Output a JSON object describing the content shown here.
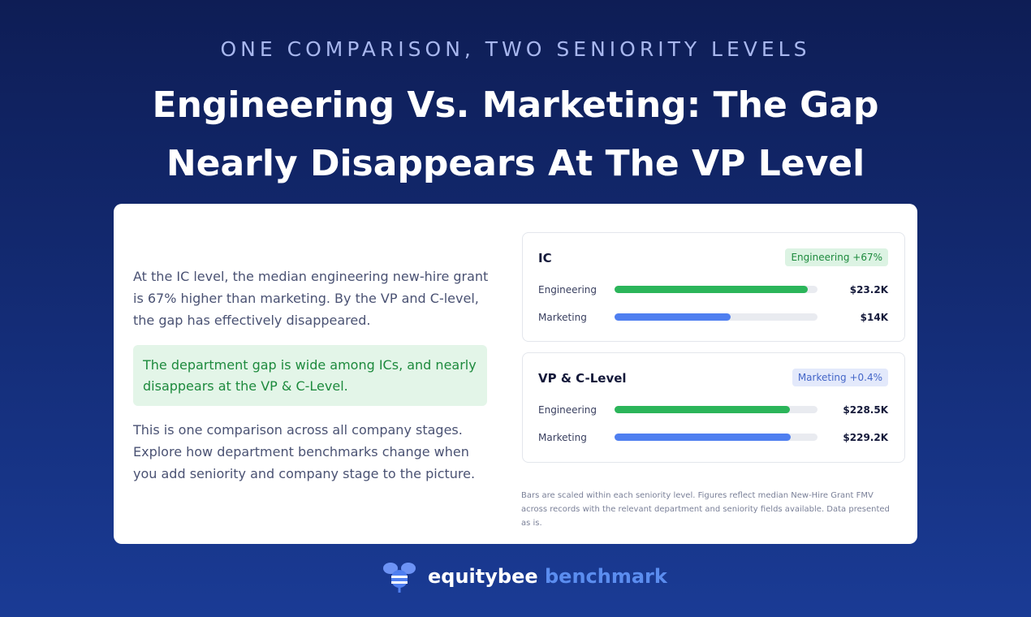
{
  "header": {
    "eyebrow": "ONE COMPARISON, TWO SENIORITY LEVELS",
    "title": "Engineering Vs. Marketing: The Gap Nearly Disappears At The VP Level"
  },
  "body": {
    "intro": "At the IC level, the median engineering new-hire grant is 67% higher than marketing. By the VP and C-level, the gap has effectively disappeared.",
    "callout": "The department gap is wide among ICs, and nearly disappears at the VP & C-Level.",
    "outro": "This is one comparison across all company stages. Explore how department benchmarks change when you add seniority and company stage to the picture."
  },
  "panels": [
    {
      "title": "IC",
      "badge": "Engineering +67%",
      "badge_style": "green",
      "xlim": [
        0,
        24400
      ],
      "rows": [
        {
          "name": "Engineering",
          "value": 23200,
          "value_label": "$23.2K",
          "color": "#2bb55a"
        },
        {
          "name": "Marketing",
          "value": 14000,
          "value_label": "$14K",
          "color": "#4f7ff0"
        }
      ]
    },
    {
      "title": "VP & C-Level",
      "badge": "Marketing +0.4%",
      "badge_style": "blue",
      "xlim": [
        0,
        264000
      ],
      "rows": [
        {
          "name": "Engineering",
          "value": 228500,
          "value_label": "$228.5K",
          "color": "#2bb55a"
        },
        {
          "name": "Marketing",
          "value": 229200,
          "value_label": "$229.2K",
          "color": "#4f7ff0"
        }
      ]
    }
  ],
  "footnote": "Bars are scaled within each seniority level. Figures reflect median New-Hire Grant FMV across records with the relevant department and seniority fields available. Data presented as is.",
  "logo": {
    "brand": "equitybee",
    "product": "benchmark"
  }
}
